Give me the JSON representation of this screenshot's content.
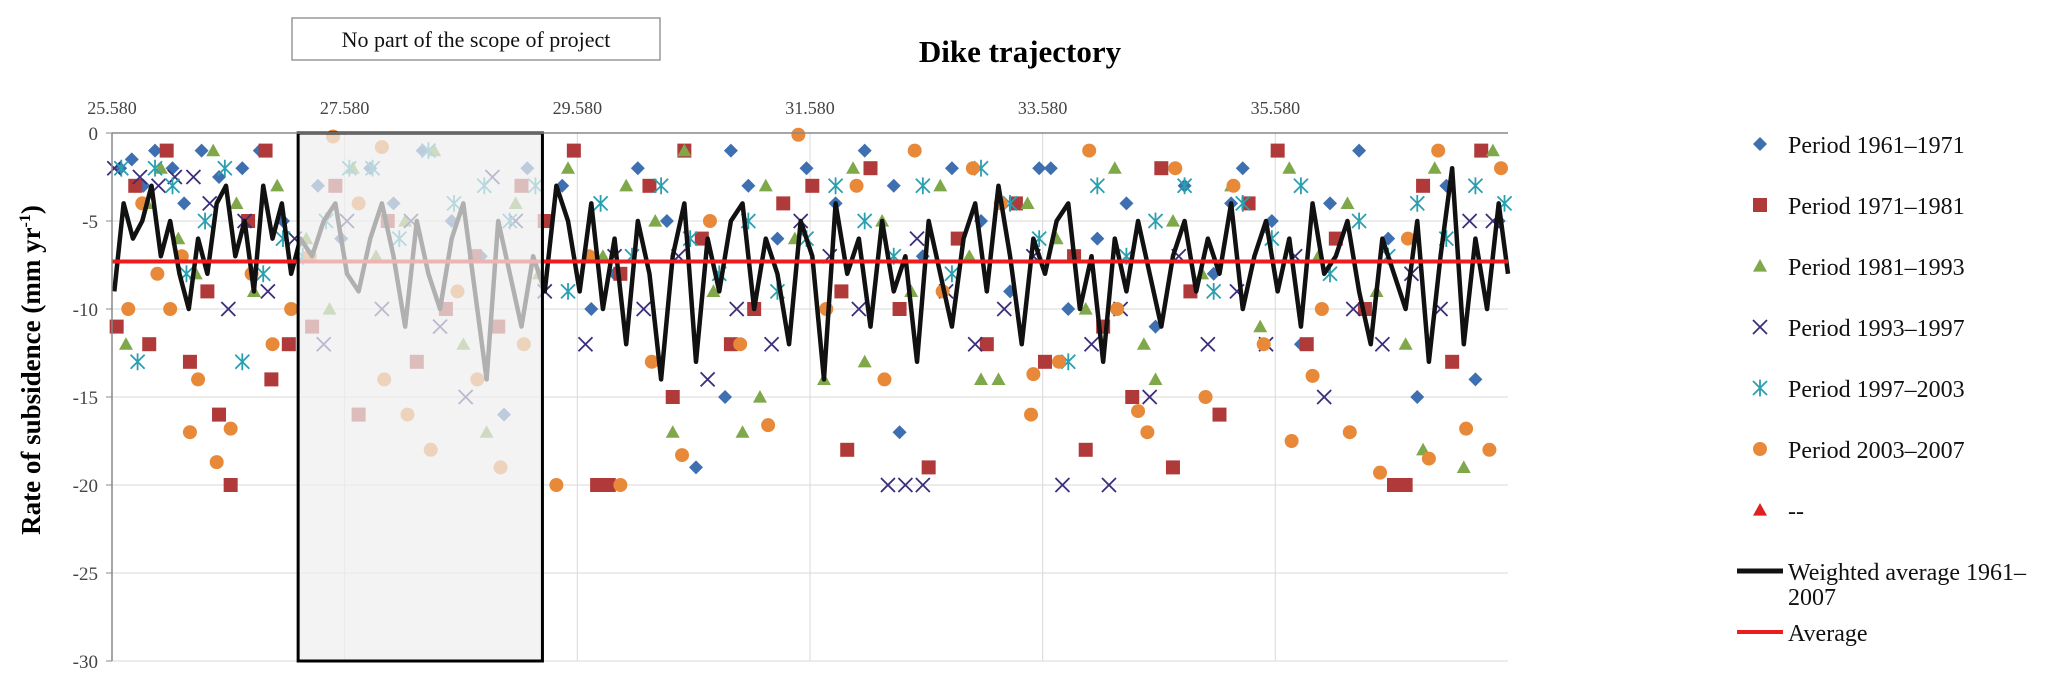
{
  "chart_data": {
    "type": "scatter",
    "title": "Dike trajectory",
    "xlabel": "",
    "ylabel": "Rate of subsidence (mm yr",
    "ylabel_sup": "-1",
    "ylabel_close": ")",
    "x_ticks": [
      "25.580",
      "27.580",
      "29.580",
      "31.580",
      "33.580",
      "35.580"
    ],
    "y_ticks": [
      "0",
      "-5",
      "-10",
      "-15",
      "-20",
      "-25",
      "-30"
    ],
    "xlim": [
      25.58,
      37.58
    ],
    "ylim": [
      -30,
      0
    ],
    "grid": true,
    "legend_position": "right",
    "annotation_box": {
      "label": "No part of the scope of project",
      "x_range": [
        27.18,
        29.28
      ]
    },
    "average_value": -7.3,
    "series": [
      {
        "name": "Period 1961–1971",
        "marker": "diamond",
        "color": "#3e6fb0",
        "x": [
          25.65,
          25.75,
          25.85,
          25.95,
          26.1,
          26.2,
          26.35,
          26.5,
          26.7,
          26.85,
          27.05,
          27.35,
          27.55,
          27.8,
          28.0,
          28.25,
          28.5,
          28.75,
          28.95,
          29.15,
          29.45,
          29.7,
          29.9,
          30.1,
          30.35,
          30.6,
          30.85,
          31.05,
          31.3,
          31.55,
          31.8,
          32.05,
          32.3,
          32.55,
          32.8,
          33.05,
          33.3,
          33.55,
          33.8,
          34.05,
          34.3,
          34.55,
          34.8,
          35.05,
          35.3,
          35.55,
          35.8,
          36.05,
          36.3,
          36.55,
          36.8,
          37.05,
          37.3,
          37.5,
          30.9,
          32.35,
          33.65,
          35.2
        ],
        "y": [
          -2,
          -1.5,
          -3,
          -1,
          -2,
          -4,
          -1,
          -2.5,
          -2,
          -1,
          -5,
          -3,
          -6,
          -2,
          -4,
          -1,
          -5,
          -7,
          -16,
          -2,
          -3,
          -10,
          -8,
          -2,
          -5,
          -19,
          -15,
          -3,
          -6,
          -2,
          -4,
          -1,
          -3,
          -7,
          -2,
          -5,
          -9,
          -2,
          -10,
          -6,
          -4,
          -11,
          -3,
          -8,
          -2,
          -5,
          -12,
          -4,
          -1,
          -6,
          -15,
          -3,
          -14,
          -5,
          -1,
          -17,
          -2,
          -4
        ]
      },
      {
        "name": "Period 1971–1981",
        "marker": "square",
        "color": "#b03a3a",
        "x": [
          25.62,
          25.78,
          25.9,
          26.05,
          26.25,
          26.4,
          26.6,
          26.75,
          26.95,
          27.1,
          27.3,
          27.5,
          27.7,
          27.95,
          28.2,
          28.45,
          28.7,
          28.9,
          29.1,
          29.3,
          29.55,
          29.75,
          29.95,
          30.2,
          30.4,
          30.65,
          30.9,
          31.1,
          31.35,
          31.6,
          31.85,
          32.1,
          32.35,
          32.6,
          32.85,
          33.1,
          33.35,
          33.6,
          33.85,
          34.1,
          34.35,
          34.6,
          34.85,
          35.1,
          35.35,
          35.6,
          35.85,
          36.1,
          36.35,
          36.6,
          36.85,
          37.1,
          37.35,
          26.5,
          26.9,
          29.85,
          30.5,
          31.9,
          33.95,
          34.7,
          36.7
        ],
        "y": [
          -11,
          -3,
          -12,
          -1,
          -13,
          -9,
          -20,
          -5,
          -14,
          -12,
          -11,
          -3,
          -16,
          -5,
          -13,
          -10,
          -7,
          -11,
          -3,
          -5,
          -1,
          -20,
          -8,
          -3,
          -15,
          -6,
          -12,
          -10,
          -4,
          -3,
          -9,
          -2,
          -10,
          -19,
          -6,
          -12,
          -4,
          -13,
          -7,
          -11,
          -15,
          -2,
          -9,
          -16,
          -4,
          -1,
          -12,
          -6,
          -10,
          -20,
          -3,
          -13,
          -1,
          -16,
          -1,
          -20,
          -1,
          -18,
          -18,
          -19,
          -20
        ]
      },
      {
        "name": "Period 1981–1993",
        "marker": "triangle",
        "color": "#7fa84a",
        "x": [
          25.7,
          25.88,
          26.0,
          26.15,
          26.3,
          26.45,
          26.65,
          26.8,
          27.0,
          27.25,
          27.45,
          27.65,
          27.85,
          28.1,
          28.35,
          28.6,
          28.8,
          29.05,
          29.25,
          29.5,
          29.8,
          30.0,
          30.25,
          30.5,
          30.75,
          31.0,
          31.2,
          31.45,
          31.7,
          31.95,
          32.2,
          32.45,
          32.7,
          32.95,
          33.2,
          33.45,
          33.7,
          33.95,
          34.2,
          34.45,
          34.7,
          34.95,
          35.2,
          35.45,
          35.7,
          35.95,
          36.2,
          36.45,
          36.7,
          36.95,
          37.2,
          37.45,
          30.4,
          31.15,
          32.05,
          33.05,
          34.55,
          36.85
        ],
        "y": [
          -12,
          -4,
          -2,
          -6,
          -8,
          -1,
          -4,
          -9,
          -3,
          -6,
          -10,
          -2,
          -7,
          -5,
          -1,
          -12,
          -17,
          -4,
          -8,
          -2,
          -7,
          -3,
          -5,
          -1,
          -9,
          -17,
          -3,
          -6,
          -14,
          -2,
          -5,
          -9,
          -3,
          -7,
          -14,
          -4,
          -6,
          -10,
          -2,
          -12,
          -5,
          -8,
          -3,
          -11,
          -2,
          -7,
          -4,
          -9,
          -12,
          -2,
          -19,
          -1,
          -17,
          -15,
          -13,
          -14,
          -14,
          -18
        ]
      },
      {
        "name": "Period 1993–1997",
        "marker": "x",
        "color": "#3b2d7a",
        "x": [
          25.6,
          25.82,
          25.98,
          26.12,
          26.28,
          26.42,
          26.58,
          26.72,
          26.92,
          27.15,
          27.4,
          27.6,
          27.9,
          28.15,
          28.4,
          28.62,
          28.85,
          29.05,
          29.3,
          29.65,
          29.9,
          30.15,
          30.45,
          30.7,
          30.95,
          31.25,
          31.5,
          31.75,
          32.0,
          32.25,
          32.5,
          32.75,
          33.0,
          33.25,
          33.5,
          33.75,
          34.0,
          34.25,
          34.5,
          34.75,
          35.0,
          35.25,
          35.5,
          35.75,
          36.0,
          36.25,
          36.5,
          36.75,
          37.0,
          37.25,
          37.45,
          32.4,
          32.55,
          34.15
        ],
        "y": [
          -2,
          -2.5,
          -3,
          -2.5,
          -2.5,
          -4,
          -10,
          -5,
          -9,
          -6,
          -12,
          -5,
          -10,
          -5,
          -11,
          -15,
          -2.5,
          -5,
          -9,
          -12,
          -7,
          -10,
          -7,
          -14,
          -10,
          -12,
          -5,
          -7,
          -10,
          -20,
          -6,
          -9,
          -12,
          -10,
          -7,
          -20,
          -12,
          -10,
          -15,
          -7,
          -12,
          -9,
          -12,
          -7,
          -15,
          -10,
          -12,
          -8,
          -10,
          -5,
          -5,
          -20,
          -20,
          -20
        ]
      },
      {
        "name": "Period 1997–2003",
        "marker": "star",
        "color": "#2a9fb0",
        "x": [
          25.66,
          25.8,
          25.95,
          26.1,
          26.22,
          26.38,
          26.55,
          26.7,
          26.88,
          27.05,
          27.22,
          27.42,
          27.62,
          27.82,
          28.05,
          28.3,
          28.52,
          28.78,
          29.0,
          29.22,
          29.5,
          29.78,
          30.05,
          30.3,
          30.55,
          30.8,
          31.05,
          31.3,
          31.55,
          31.8,
          32.05,
          32.3,
          32.55,
          32.8,
          33.05,
          33.3,
          33.55,
          33.8,
          34.05,
          34.3,
          34.55,
          34.8,
          35.05,
          35.3,
          35.55,
          35.8,
          36.05,
          36.3,
          36.55,
          36.8,
          37.05,
          37.3,
          37.55
        ],
        "y": [
          -2,
          -13,
          -2,
          -3,
          -8,
          -5,
          -2,
          -13,
          -8,
          -6,
          -7,
          -5,
          -2,
          -2,
          -6,
          -1,
          -4,
          -3,
          -5,
          -3,
          -9,
          -4,
          -7,
          -3,
          -6,
          -8,
          -5,
          -9,
          -6,
          -3,
          -5,
          -7,
          -3,
          -8,
          -2,
          -4,
          -6,
          -13,
          -3,
          -7,
          -5,
          -3,
          -9,
          -4,
          -6,
          -3,
          -8,
          -5,
          -7,
          -4,
          -6,
          -3,
          -4
        ]
      },
      {
        "name": "Period 2003–2007",
        "marker": "circle",
        "color": "#e8893a",
        "x": [
          25.72,
          25.84,
          25.97,
          26.08,
          26.18,
          26.32,
          26.48,
          26.6,
          26.78,
          26.96,
          27.12,
          27.28,
          27.48,
          27.7,
          27.92,
          28.12,
          28.32,
          28.55,
          28.72,
          28.92,
          29.12,
          29.4,
          29.68,
          29.95,
          30.22,
          30.48,
          30.72,
          30.98,
          31.22,
          31.48,
          31.72,
          31.98,
          32.22,
          32.48,
          32.72,
          32.98,
          33.22,
          33.48,
          33.72,
          33.98,
          34.22,
          34.48,
          34.72,
          34.98,
          35.22,
          35.48,
          35.72,
          35.98,
          36.22,
          36.48,
          36.72,
          36.98,
          37.22,
          37.42,
          37.52,
          26.25,
          27.9,
          33.5,
          34.4,
          35.9,
          36.9
        ],
        "y": [
          -10,
          -4,
          -8,
          -10,
          -7,
          -14,
          -18.7,
          -16.8,
          -8,
          -12,
          -10,
          -7,
          -0.2,
          -4,
          -14,
          -16,
          -18,
          -9,
          -14,
          -19,
          -12,
          -20,
          -7,
          -20,
          -13,
          -18.3,
          -5,
          -12,
          -16.6,
          -0.1,
          -10,
          -3,
          -14,
          -1,
          -9,
          -2,
          -4,
          -16,
          -13,
          -1,
          -10,
          -17,
          -2,
          -15,
          -3,
          -12,
          -17.5,
          -10,
          -17,
          -19.3,
          -6,
          -1,
          -16.8,
          -18,
          -2,
          -17,
          -0.8,
          -13.7,
          -15.8,
          -13.8,
          -18.5
        ]
      }
    ],
    "legend": [
      {
        "label": "Period 1961–1971",
        "marker": "diamond",
        "color": "#3e6fb0"
      },
      {
        "label": "Period 1971–1981",
        "marker": "square",
        "color": "#b03a3a"
      },
      {
        "label": "Period 1981–1993",
        "marker": "triangle",
        "color": "#7fa84a"
      },
      {
        "label": "Period 1993–1997",
        "marker": "x",
        "color": "#3b2d7a"
      },
      {
        "label": "Period 1997–2003",
        "marker": "star",
        "color": "#2a9fb0"
      },
      {
        "label": "Period 2003–2007",
        "marker": "circle",
        "color": "#e8893a"
      },
      {
        "label": "--",
        "marker": "triangle",
        "color": "#e02020"
      },
      {
        "label": "Weighted average 1961–",
        "label_line2": "2007",
        "marker": "line",
        "color": "#111111"
      },
      {
        "label": "Average",
        "marker": "line",
        "color": "#ee1c1c"
      }
    ],
    "weighted_average": {
      "x": [
        25.6,
        25.68,
        25.76,
        25.84,
        25.92,
        26.0,
        26.08,
        26.16,
        26.24,
        26.32,
        26.4,
        26.48,
        26.56,
        26.64,
        26.72,
        26.8,
        26.88,
        26.96,
        27.04,
        27.12,
        27.2,
        27.3,
        27.4,
        27.5,
        27.6,
        27.7,
        27.8,
        27.9,
        28.0,
        28.1,
        28.2,
        28.3,
        28.4,
        28.5,
        28.6,
        28.7,
        28.8,
        28.9,
        29.0,
        29.1,
        29.2,
        29.3,
        29.4,
        29.5,
        29.6,
        29.7,
        29.8,
        29.9,
        30.0,
        30.1,
        30.2,
        30.3,
        30.4,
        30.5,
        30.6,
        30.7,
        30.8,
        30.9,
        31.0,
        31.1,
        31.2,
        31.3,
        31.4,
        31.5,
        31.6,
        31.7,
        31.8,
        31.9,
        32.0,
        32.1,
        32.2,
        32.3,
        32.4,
        32.5,
        32.6,
        32.7,
        32.8,
        32.9,
        33.0,
        33.1,
        33.2,
        33.3,
        33.4,
        33.5,
        33.6,
        33.7,
        33.8,
        33.9,
        34.0,
        34.1,
        34.2,
        34.3,
        34.4,
        34.5,
        34.6,
        34.7,
        34.8,
        34.9,
        35.0,
        35.1,
        35.2,
        35.3,
        35.4,
        35.5,
        35.6,
        35.7,
        35.8,
        35.9,
        36.0,
        36.1,
        36.2,
        36.3,
        36.4,
        36.5,
        36.6,
        36.7,
        36.8,
        36.9,
        37.0,
        37.1,
        37.2,
        37.3,
        37.4,
        37.5,
        37.58
      ],
      "y": [
        -9,
        -4,
        -6,
        -5,
        -3,
        -7,
        -5,
        -8,
        -10,
        -6,
        -8,
        -4,
        -3,
        -7,
        -5,
        -9,
        -3,
        -6,
        -4,
        -8,
        -6,
        -7,
        -5,
        -4,
        -8,
        -9,
        -6,
        -4,
        -7,
        -11,
        -5,
        -8,
        -10,
        -6,
        -4,
        -9,
        -14,
        -5,
        -8,
        -11,
        -7,
        -9,
        -3,
        -5,
        -9,
        -4,
        -10,
        -6,
        -12,
        -5,
        -8,
        -14,
        -7,
        -4,
        -13,
        -6,
        -9,
        -5,
        -4,
        -10,
        -6,
        -8,
        -12,
        -5,
        -7,
        -14,
        -4,
        -8,
        -6,
        -11,
        -5,
        -9,
        -7,
        -13,
        -5,
        -8,
        -11,
        -6,
        -4,
        -9,
        -3,
        -7,
        -12,
        -6,
        -8,
        -5,
        -4,
        -10,
        -7,
        -13,
        -6,
        -9,
        -5,
        -8,
        -11,
        -7,
        -5,
        -9,
        -6,
        -8,
        -4,
        -10,
        -7,
        -5,
        -9,
        -6,
        -11,
        -4,
        -8,
        -7,
        -5,
        -9,
        -12,
        -6,
        -8,
        -10,
        -5,
        -13,
        -7,
        -2,
        -12,
        -6,
        -10,
        -4,
        -8
      ]
    }
  }
}
